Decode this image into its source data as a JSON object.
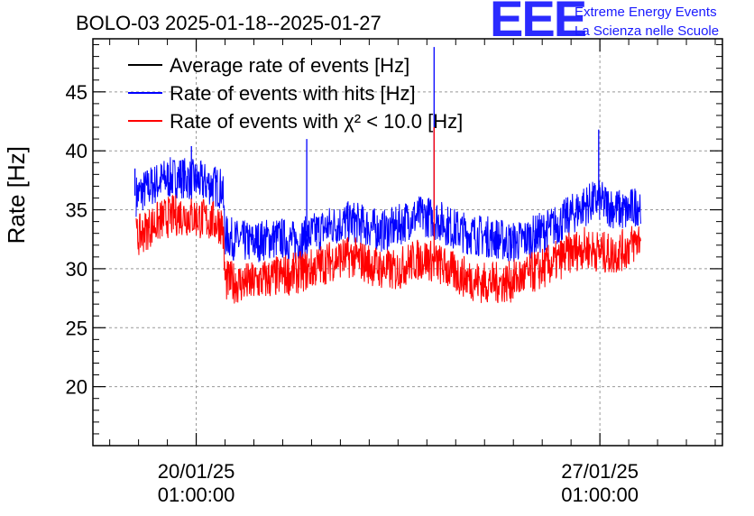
{
  "chart_data": {
    "type": "line",
    "title": "BOLO-03 2025-01-18--2025-01-27",
    "ylabel": "Rate [Hz]",
    "xlabel": "",
    "ylim": [
      15,
      49.5
    ],
    "xlim": [
      "2025-01-18 06:00",
      "2025-01-29 04:00"
    ],
    "yticks": [
      20,
      25,
      30,
      35,
      40,
      45
    ],
    "xticks": [
      {
        "date": "2025-01-20 01:00",
        "line1": "20/01/25",
        "line2": "01:00:00"
      },
      {
        "date": "2025-01-27 01:00",
        "line1": "27/01/25",
        "line2": "01:00:00"
      }
    ],
    "grid": true,
    "legend_position": "top-left",
    "series": [
      {
        "name": "Average rate of events [Hz]",
        "color": "#000000",
        "x": [],
        "y": []
      },
      {
        "name": "Rate of events with hits [Hz]",
        "color": "#0000ff",
        "x": [
          "2025-01-19 00:00",
          "2025-01-19 06:00",
          "2025-01-19 12:00",
          "2025-01-19 18:00",
          "2025-01-20 00:00",
          "2025-01-20 06:00",
          "2025-01-20 12:00",
          "2025-01-20 13:00",
          "2025-01-20 18:00",
          "2025-01-21 00:00",
          "2025-01-21 06:00",
          "2025-01-21 12:00",
          "2025-01-21 18:00",
          "2025-01-22 00:00",
          "2025-01-22 06:00",
          "2025-01-22 12:00",
          "2025-01-22 18:00",
          "2025-01-23 00:00",
          "2025-01-23 06:00",
          "2025-01-23 12:00",
          "2025-01-23 18:00",
          "2025-01-24 00:00",
          "2025-01-24 06:00",
          "2025-01-24 12:00",
          "2025-01-24 18:00",
          "2025-01-25 00:00",
          "2025-01-25 06:00",
          "2025-01-25 12:00",
          "2025-01-25 18:00",
          "2025-01-26 00:00",
          "2025-01-26 06:00",
          "2025-01-26 12:00",
          "2025-01-26 18:00",
          "2025-01-27 00:00",
          "2025-01-27 06:00",
          "2025-01-27 12:00",
          "2025-01-27 18:00"
        ],
        "y": [
          36.2,
          37.0,
          37.6,
          37.8,
          37.5,
          37.2,
          36.8,
          32.8,
          32.4,
          32.2,
          32.5,
          32.6,
          32.3,
          32.8,
          33.4,
          33.8,
          34.0,
          33.6,
          33.2,
          33.5,
          34.3,
          34.5,
          34.1,
          33.4,
          33.0,
          32.8,
          32.6,
          32.2,
          32.5,
          33.0,
          33.6,
          34.4,
          35.3,
          35.8,
          35.2,
          34.8,
          35.6
        ]
      },
      {
        "name": "Rate of events with χ² < 10.0 [Hz]",
        "color": "#ff0000",
        "x": [
          "2025-01-19 00:00",
          "2025-01-19 06:00",
          "2025-01-19 12:00",
          "2025-01-19 18:00",
          "2025-01-20 00:00",
          "2025-01-20 06:00",
          "2025-01-20 12:00",
          "2025-01-20 13:00",
          "2025-01-20 18:00",
          "2025-01-21 00:00",
          "2025-01-21 06:00",
          "2025-01-21 12:00",
          "2025-01-21 18:00",
          "2025-01-22 00:00",
          "2025-01-22 06:00",
          "2025-01-22 12:00",
          "2025-01-22 18:00",
          "2025-01-23 00:00",
          "2025-01-23 06:00",
          "2025-01-23 12:00",
          "2025-01-23 18:00",
          "2025-01-24 00:00",
          "2025-01-24 06:00",
          "2025-01-24 12:00",
          "2025-01-24 18:00",
          "2025-01-25 00:00",
          "2025-01-25 06:00",
          "2025-01-25 12:00",
          "2025-01-25 18:00",
          "2025-01-26 00:00",
          "2025-01-26 06:00",
          "2025-01-26 12:00",
          "2025-01-26 18:00",
          "2025-01-27 00:00",
          "2025-01-27 06:00",
          "2025-01-27 12:00",
          "2025-01-27 18:00"
        ],
        "y": [
          32.6,
          33.6,
          34.3,
          34.6,
          34.4,
          34.1,
          33.8,
          29.0,
          28.8,
          28.8,
          29.1,
          29.4,
          29.6,
          29.9,
          30.4,
          30.9,
          31.0,
          30.5,
          30.0,
          29.8,
          30.6,
          30.9,
          30.4,
          29.7,
          29.2,
          28.8,
          28.8,
          28.9,
          29.4,
          29.9,
          30.5,
          31.3,
          31.8,
          31.5,
          31.2,
          31.7,
          32.6
        ]
      }
    ],
    "spikes": [
      {
        "series": 1,
        "x": "2025-01-18 23:30",
        "y": 38.5
      },
      {
        "series": 1,
        "x": "2025-01-19 23:00",
        "y": 40.4
      },
      {
        "series": 1,
        "x": "2025-01-21 23:00",
        "y": 41.0
      },
      {
        "series": 1,
        "x": "2025-01-24 04:00",
        "y": 48.8
      },
      {
        "series": 1,
        "x": "2025-01-27 00:30",
        "y": 41.8
      },
      {
        "series": 2,
        "x": "2025-01-24 04:00",
        "y": 42.0
      }
    ]
  },
  "logo": {
    "mark": "EEE",
    "line1": "Extreme Energy Events",
    "line2": "La Scienza nelle Scuole"
  }
}
